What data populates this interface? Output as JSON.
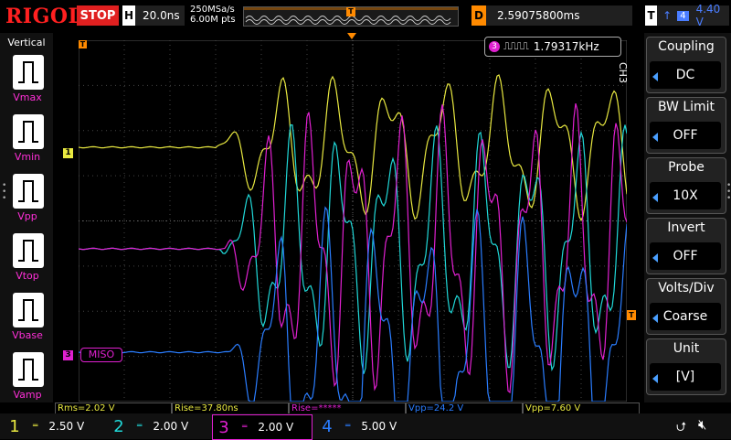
{
  "header": {
    "brand": "RIGOL",
    "run_state": "STOP",
    "timebase_label": "H",
    "timebase_value": "20.0ns",
    "sample_rate": "250MSa/s",
    "memory_depth": "6.00M pts",
    "trigger_marker": "T",
    "delay_label": "D",
    "delay_value": "2.59075800ms",
    "trigger_label": "T",
    "trigger_edge_icon": "rising-edge-icon",
    "trigger_channel": "4",
    "trigger_level": "4.40 V"
  },
  "left_panel": {
    "title": "Vertical",
    "items": [
      {
        "label": "Vmax",
        "icon": "vmax-icon"
      },
      {
        "label": "Vmin",
        "icon": "vmin-icon"
      },
      {
        "label": "Vpp",
        "icon": "vpp-icon"
      },
      {
        "label": "Vtop",
        "icon": "vtop-icon"
      },
      {
        "label": "Vbase",
        "icon": "vbase-icon"
      },
      {
        "label": "Vamp",
        "icon": "vamp-icon"
      }
    ]
  },
  "display": {
    "frequency_counter_channel": "3",
    "frequency_counter_value": "1.79317kHz",
    "ch1_marker": "1",
    "ch3_marker": "3",
    "ch3_decoder_label": "MISO",
    "trigger_level_marker": "T",
    "colors": {
      "ch1": "#e8e840",
      "ch2": "#20d8d8",
      "ch3": "#e020d0",
      "ch4": "#2a7dff"
    }
  },
  "right_panel": {
    "channel_tag": "CH3",
    "items": [
      {
        "title": "Coupling",
        "value": "DC"
      },
      {
        "title": "BW Limit",
        "value": "OFF"
      },
      {
        "title": "Probe",
        "value": "10X"
      },
      {
        "title": "Invert",
        "value": "OFF"
      },
      {
        "title": "Volts/Div",
        "value": "Coarse"
      },
      {
        "title": "Unit",
        "value": "[V]"
      }
    ]
  },
  "measurements": [
    {
      "text": "Rms=2.02 V",
      "color": "#e8e840"
    },
    {
      "text": "Rise=37.80ns",
      "color": "#e8e840"
    },
    {
      "text": "Rise=*****",
      "color": "#e020d0"
    },
    {
      "text": "Vpp=24.2 V",
      "color": "#2a7dff"
    },
    {
      "text": "Vpp=7.60 V",
      "color": "#e8e840"
    }
  ],
  "channels": [
    {
      "num": "1",
      "scale": "2.50 V",
      "color": "#e8e840"
    },
    {
      "num": "2",
      "scale": "2.00 V",
      "color": "#20d8d8"
    },
    {
      "num": "3",
      "scale": "2.00 V",
      "color": "#e020d0"
    },
    {
      "num": "4",
      "scale": "5.00 V",
      "color": "#2a7dff"
    }
  ],
  "status_icons": [
    "usb-icon",
    "speaker-mute-icon"
  ]
}
